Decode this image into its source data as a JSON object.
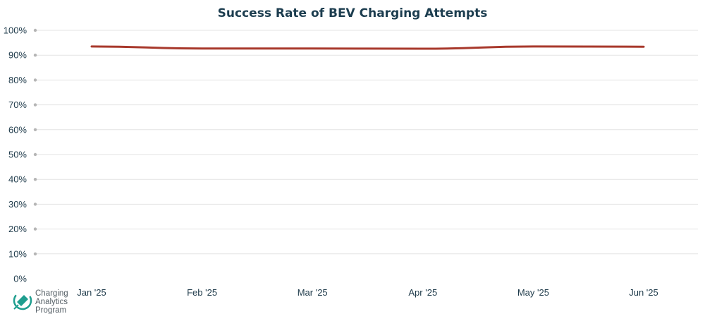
{
  "chart_data": {
    "type": "line",
    "title": "Success Rate of BEV Charging Attempts",
    "xlabel": "",
    "ylabel": "",
    "categories": [
      "Jan '25",
      "Feb '25",
      "Mar '25",
      "Apr '25",
      "May '25",
      "Jun '25"
    ],
    "series": [
      {
        "values": [
          93.5,
          92.7,
          92.7,
          92.6,
          93.5,
          93.4
        ],
        "color": "#a8392c"
      }
    ],
    "ylim": [
      0,
      100
    ],
    "yticks": [
      0,
      10,
      20,
      30,
      40,
      50,
      60,
      70,
      80,
      90,
      100
    ],
    "ytick_labels": [
      "0%",
      "10%",
      "20%",
      "30%",
      "40%",
      "50%",
      "60%",
      "70%",
      "80%",
      "90%",
      "100%"
    ],
    "grid": true,
    "legend": "none"
  },
  "logo": {
    "icon": "plug-leaf-icon",
    "lines": [
      "Charging",
      "Analytics",
      "Program"
    ],
    "color": "#1f9e8f"
  }
}
